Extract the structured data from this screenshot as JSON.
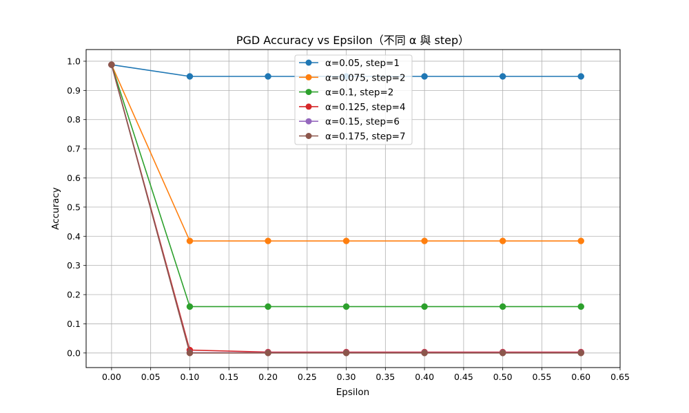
{
  "chart_data": {
    "type": "line",
    "title": "PGD Accuracy vs Epsilon（不同 α 與 step）",
    "xlabel": "Epsilon",
    "ylabel": "Accuracy",
    "xlim": [
      -0.0325,
      0.65
    ],
    "ylim": [
      -0.05,
      1.04
    ],
    "xticks": [
      "0.00",
      "0.05",
      "0.10",
      "0.15",
      "0.20",
      "0.25",
      "0.30",
      "0.35",
      "0.40",
      "0.45",
      "0.50",
      "0.55",
      "0.60",
      "0.65"
    ],
    "yticks": [
      "0.0",
      "0.1",
      "0.2",
      "0.3",
      "0.4",
      "0.5",
      "0.6",
      "0.7",
      "0.8",
      "0.9",
      "1.0"
    ],
    "grid": true,
    "legend_position": "top-center",
    "x": [
      0.0,
      0.1,
      0.2,
      0.3,
      0.4,
      0.5,
      0.6
    ],
    "series": [
      {
        "name": "α=0.05, step=1",
        "color": "#1f77b4",
        "values": [
          0.988,
          0.948,
          0.948,
          0.948,
          0.948,
          0.948,
          0.948
        ]
      },
      {
        "name": "α=0.075, step=2",
        "color": "#ff7f0e",
        "values": [
          0.988,
          0.384,
          0.384,
          0.384,
          0.384,
          0.384,
          0.384
        ]
      },
      {
        "name": "α=0.1, step=2",
        "color": "#2ca02c",
        "values": [
          0.988,
          0.159,
          0.159,
          0.159,
          0.159,
          0.159,
          0.159
        ]
      },
      {
        "name": "α=0.125, step=4",
        "color": "#d62728",
        "values": [
          0.988,
          0.01,
          0.003,
          0.003,
          0.003,
          0.003,
          0.003
        ]
      },
      {
        "name": "α=0.15, step=6",
        "color": "#9467bd",
        "values": [
          0.988,
          0.001,
          0.001,
          0.001,
          0.001,
          0.001,
          0.001
        ]
      },
      {
        "name": "α=0.175, step=7",
        "color": "#8c564b",
        "values": [
          0.988,
          0.0,
          0.0,
          0.0,
          0.0,
          0.0,
          0.0
        ]
      }
    ]
  }
}
